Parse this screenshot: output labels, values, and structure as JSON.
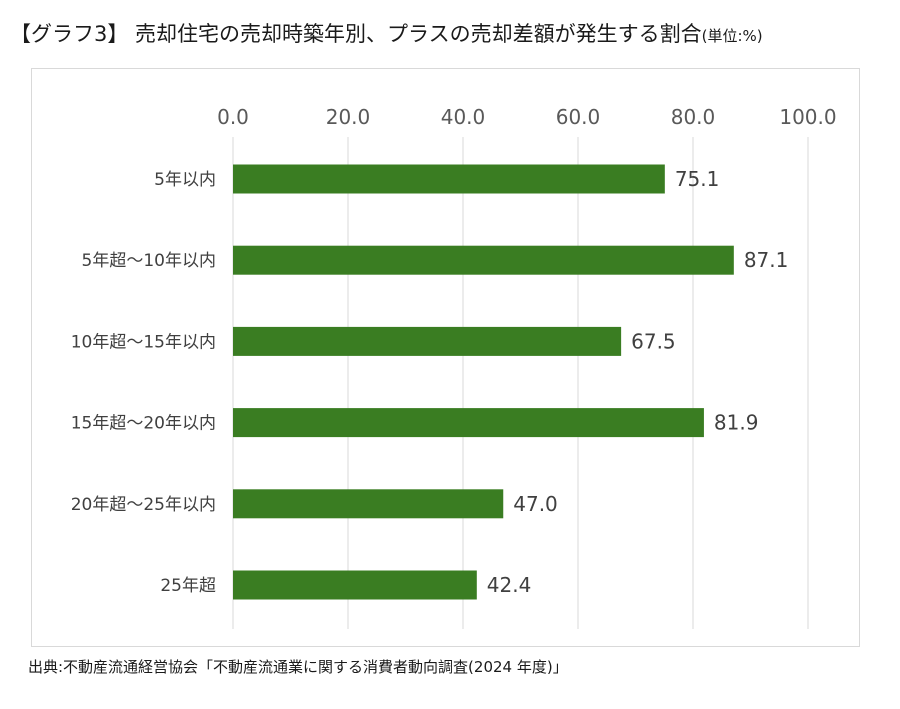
{
  "title": {
    "main": "【グラフ3】 売却住宅の売却時築年別、プラスの売却差額が発生する割合",
    "unit": "(単位:%)"
  },
  "source": "出典:不動産流通経営協会「不動産流通業に関する消費者動向調査(2024 年度)」",
  "chart_data": {
    "type": "bar",
    "orientation": "horizontal",
    "categories": [
      "5年以内",
      "5年超〜10年以内",
      "10年超〜15年以内",
      "15年超〜20年以内",
      "20年超〜25年以内",
      "25年超"
    ],
    "values": [
      75.1,
      87.1,
      67.5,
      81.9,
      47.0,
      42.4
    ],
    "value_labels": [
      "75.1",
      "87.1",
      "67.5",
      "81.9",
      "47.0",
      "42.4"
    ],
    "xticks": [
      "0.0",
      "20.0",
      "40.0",
      "60.0",
      "80.0",
      "100.0"
    ],
    "xlim": [
      0,
      100
    ],
    "axis_position": "top",
    "grid": true,
    "bar_color": "#3a7d22",
    "grid_color": "#d9d9d9"
  }
}
